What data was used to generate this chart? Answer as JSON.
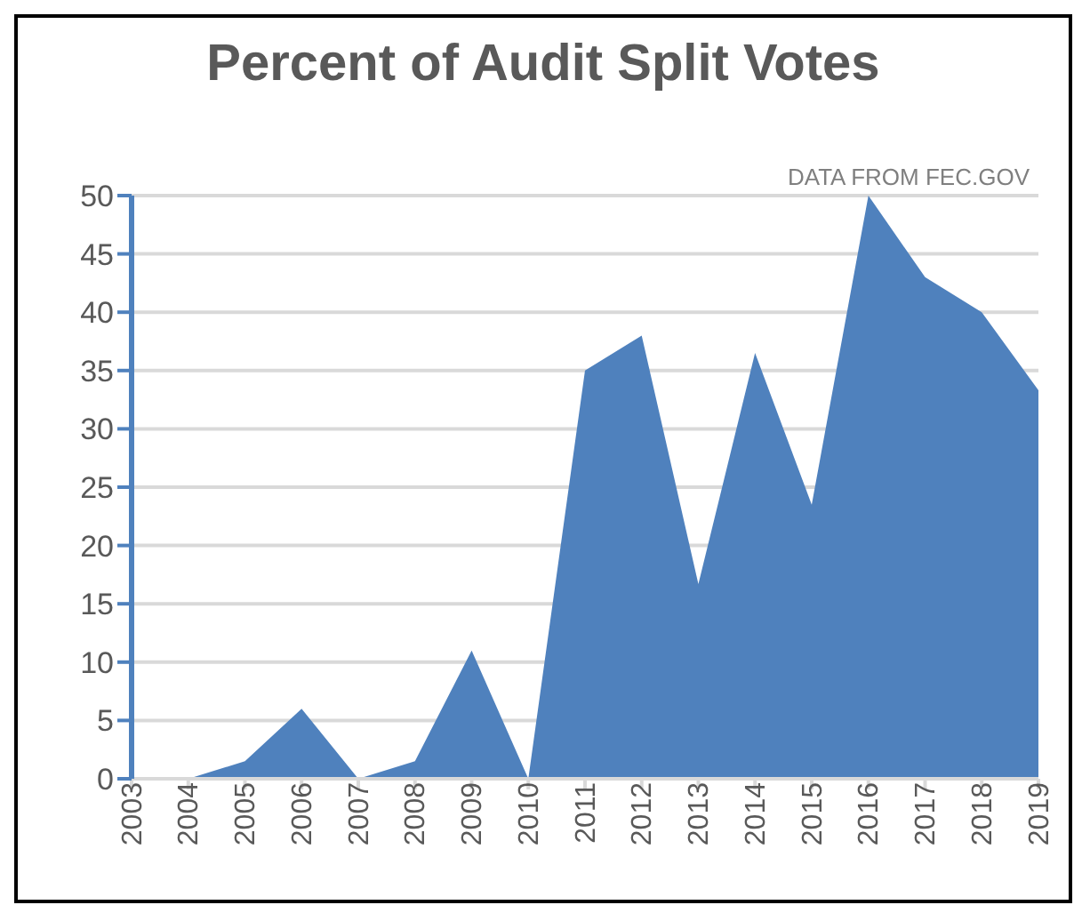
{
  "chart_data": {
    "type": "area",
    "title": "Percent of Audit Split Votes",
    "annotations": [
      "DATA FROM FEC.GOV"
    ],
    "categories": [
      "2003",
      "2004",
      "2005",
      "2006",
      "2007",
      "2008",
      "2009",
      "2010",
      "2011",
      "2012",
      "2013",
      "2014",
      "2015",
      "2016",
      "2017",
      "2018",
      "2019"
    ],
    "series": [
      {
        "color": "#4f81bd",
        "values": [
          null,
          0,
          1.5,
          6,
          0,
          1.5,
          11,
          0,
          35,
          38,
          16.7,
          36.5,
          23.5,
          50,
          43,
          40,
          33.3
        ]
      }
    ],
    "ylim": [
      0,
      50
    ],
    "yticks": [
      0,
      5,
      10,
      15,
      20,
      25,
      30,
      35,
      40,
      45,
      50
    ],
    "grid": "y",
    "legend": false
  }
}
